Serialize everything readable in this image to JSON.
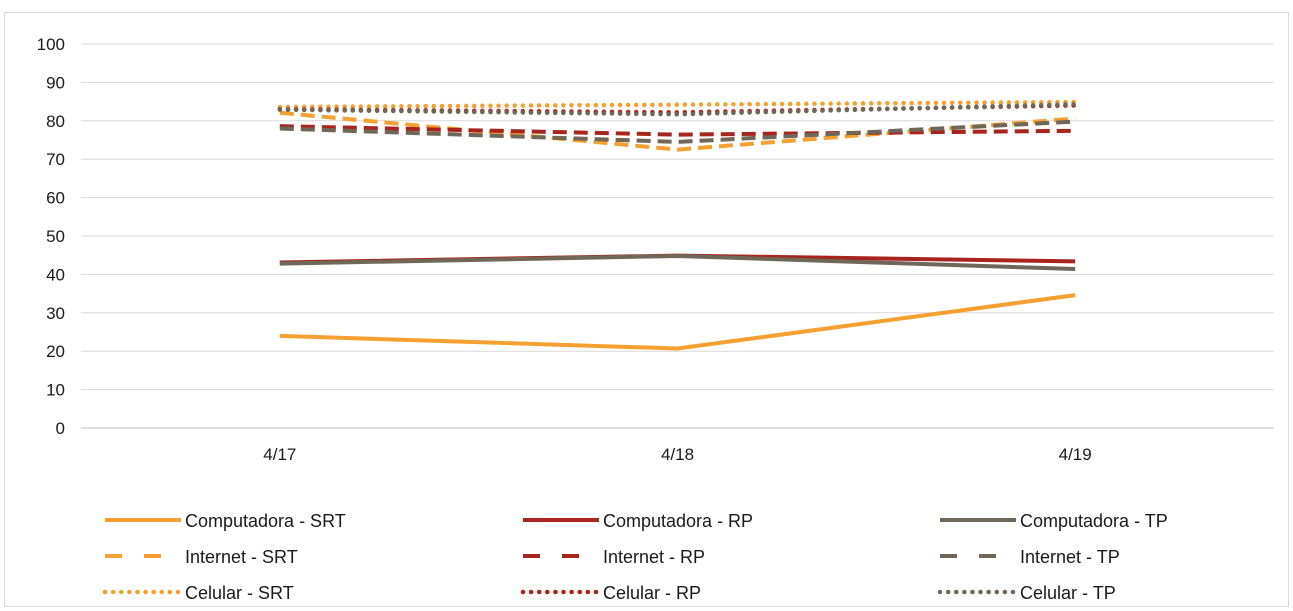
{
  "chart_data": {
    "type": "line",
    "title": "",
    "xlabel": "",
    "ylabel": "",
    "categories": [
      "4/17",
      "4/18",
      "4/19"
    ],
    "ylim": [
      0,
      100
    ],
    "yticks": [
      0,
      10,
      20,
      30,
      40,
      50,
      60,
      70,
      80,
      90,
      100
    ],
    "grid": true,
    "legend_position": "bottom",
    "series": [
      {
        "name": "Computadora - SRT",
        "values": [
          24.0,
          20.7,
          34.6
        ],
        "color": "#f5a031",
        "dash": "solid"
      },
      {
        "name": "Internet - SRT",
        "values": [
          82.1,
          72.5,
          80.6
        ],
        "color": "#f5a031",
        "dash": "dash"
      },
      {
        "name": "Celular - SRT",
        "values": [
          83.6,
          84.2,
          84.9
        ],
        "color": "#f5a031",
        "dash": "dot"
      },
      {
        "name": "Computadora - RP",
        "values": [
          43.1,
          44.9,
          43.4
        ],
        "color": "#a8251d",
        "dash": "solid"
      },
      {
        "name": "Internet - RP",
        "values": [
          78.6,
          76.4,
          77.4
        ],
        "color": "#a8251d",
        "dash": "dash"
      },
      {
        "name": "Celular - RP",
        "values": [
          83.0,
          82.2,
          84.0
        ],
        "color": "#a8251d",
        "dash": "dot"
      },
      {
        "name": "Computadora - TP",
        "values": [
          42.8,
          44.8,
          41.4
        ],
        "color": "#6f6858",
        "dash": "solid"
      },
      {
        "name": "Internet - TP",
        "values": [
          78.0,
          74.5,
          79.8
        ],
        "color": "#6f6858",
        "dash": "dash"
      },
      {
        "name": "Celular - TP",
        "values": [
          82.9,
          81.7,
          84.3
        ],
        "color": "#6f6858",
        "dash": "dot"
      }
    ]
  }
}
